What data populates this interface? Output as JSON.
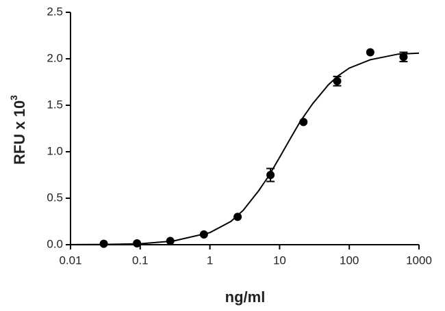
{
  "chart_data": {
    "type": "scatter",
    "xlabel": "ng/ml",
    "ylabel": "RFU x 10",
    "ylabel_exponent": "3",
    "xscale": "log",
    "xlim": [
      0.01,
      1000
    ],
    "xticks": [
      0.01,
      0.1,
      1,
      10,
      100,
      1000
    ],
    "ylim": [
      0,
      2.5
    ],
    "yticks": [
      {
        "value": 0,
        "label": "0.0"
      },
      0.5,
      {
        "value": 1,
        "label": "1.0"
      },
      1.5,
      {
        "value": 2,
        "label": "2.0"
      },
      2.5
    ],
    "grid": false,
    "series": [
      {
        "color": "#000000",
        "x": [
          0.03,
          0.09,
          0.27,
          0.82,
          2.5,
          7.4,
          22,
          67,
          200,
          600
        ],
        "values": [
          0.01,
          0.015,
          0.04,
          0.11,
          0.3,
          0.75,
          1.32,
          1.76,
          2.07,
          2.02
        ],
        "errors": [
          null,
          null,
          null,
          null,
          null,
          0.07,
          null,
          0.05,
          null,
          0.05
        ]
      }
    ],
    "fit": {
      "color": "#000000",
      "x": [
        0.01,
        0.03,
        0.1,
        0.3,
        1,
        2,
        3,
        5,
        7,
        10,
        15,
        20,
        30,
        50,
        70,
        100,
        200,
        500,
        1000
      ],
      "values": [
        0.001,
        0.003,
        0.01,
        0.04,
        0.13,
        0.25,
        0.37,
        0.58,
        0.74,
        0.94,
        1.17,
        1.33,
        1.52,
        1.72,
        1.82,
        1.9,
        1.99,
        2.05,
        2.06
      ]
    }
  }
}
